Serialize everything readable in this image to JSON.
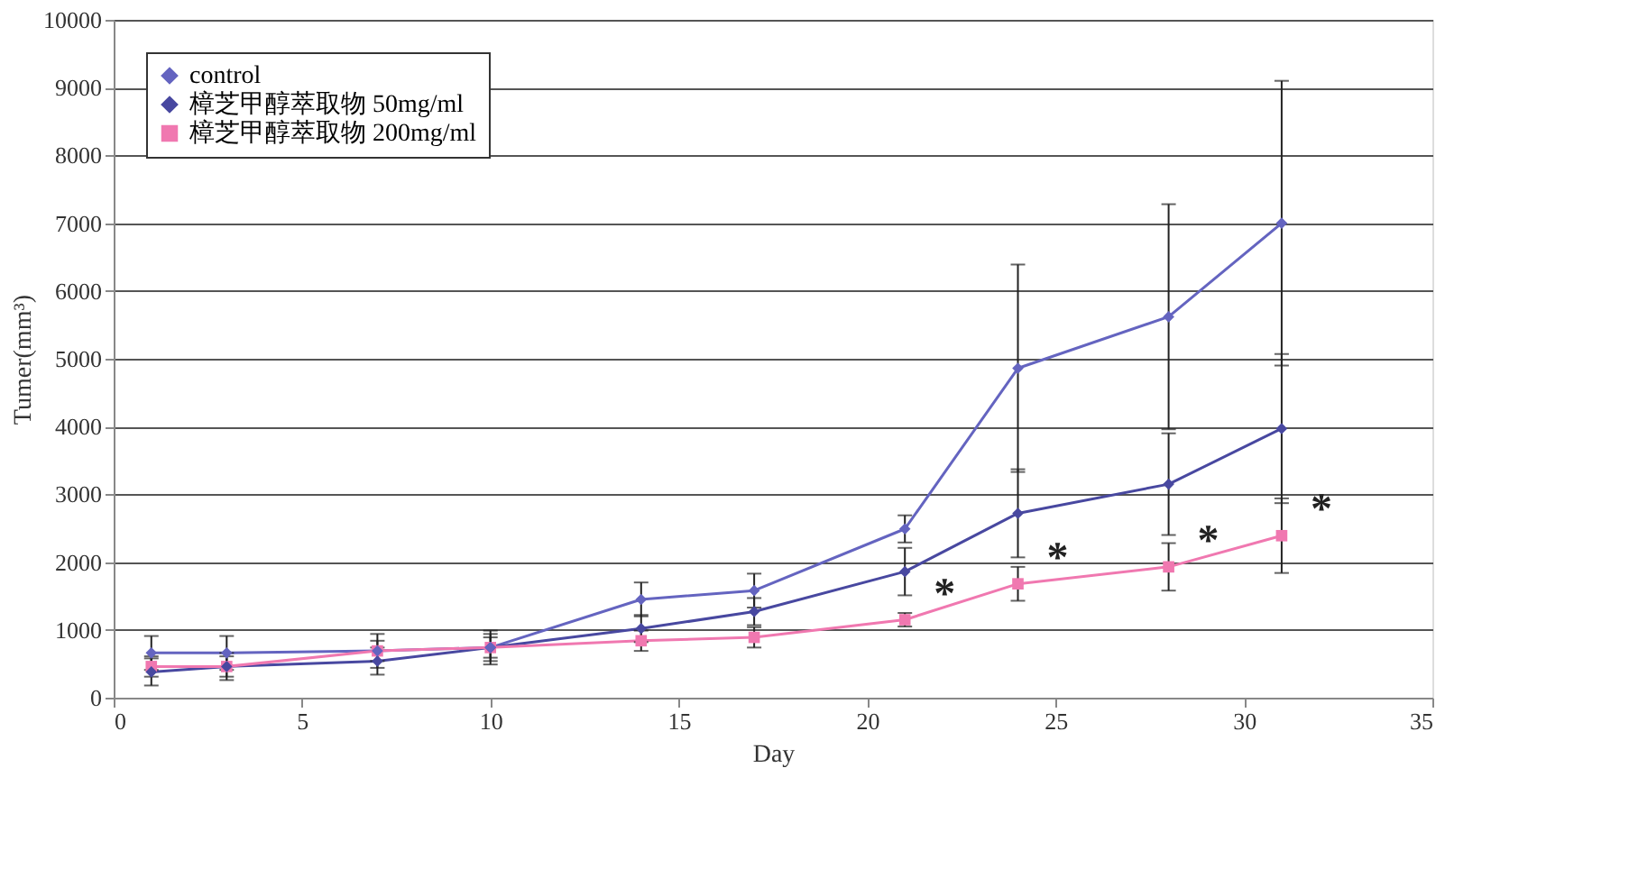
{
  "chart_data": {
    "type": "line",
    "xlabel": "Day",
    "ylabel": "Tumer(mm³)",
    "x": [
      1,
      3,
      7,
      10,
      14,
      17,
      21,
      24,
      28,
      31
    ],
    "series": [
      {
        "name": "control",
        "color": "#6464c0",
        "marker": "diamond",
        "values": [
          660,
          660,
          690,
          740,
          1450,
          1580,
          2490,
          4860,
          5620,
          7000
        ],
        "errors": [
          250,
          250,
          250,
          250,
          250,
          250,
          200,
          1530,
          1660,
          2100
        ]
      },
      {
        "name": "樟芝甲醇萃取物 50mg/ml",
        "color": "#4848a0",
        "marker": "diamond",
        "values": [
          380,
          460,
          540,
          740,
          1020,
          1270,
          1860,
          2720,
          3150,
          3970
        ],
        "errors": [
          200,
          200,
          200,
          200,
          200,
          200,
          350,
          650,
          750,
          1100
        ]
      },
      {
        "name": "樟芝甲醇萃取物 200mg/ml",
        "color": "#f078b0",
        "marker": "square",
        "values": [
          460,
          460,
          690,
          740,
          840,
          890,
          1150,
          1680,
          1930,
          2390
        ],
        "errors": [
          150,
          150,
          150,
          150,
          150,
          150,
          100,
          250,
          350,
          550
        ]
      }
    ],
    "annotations": [
      {
        "text": "*",
        "x": 21,
        "y": 1150
      },
      {
        "text": "*",
        "x": 24,
        "y": 1680
      },
      {
        "text": "*",
        "x": 28,
        "y": 1930
      },
      {
        "text": "*",
        "x": 31,
        "y": 2390
      }
    ],
    "xlim": [
      0,
      35
    ],
    "xticks": [
      0,
      5,
      10,
      15,
      20,
      25,
      30,
      35
    ],
    "ylim": [
      0,
      10000
    ],
    "yticks": [
      0,
      1000,
      2000,
      3000,
      4000,
      5000,
      6000,
      7000,
      8000,
      9000,
      10000
    ],
    "grid": "y",
    "legend": "top left"
  }
}
